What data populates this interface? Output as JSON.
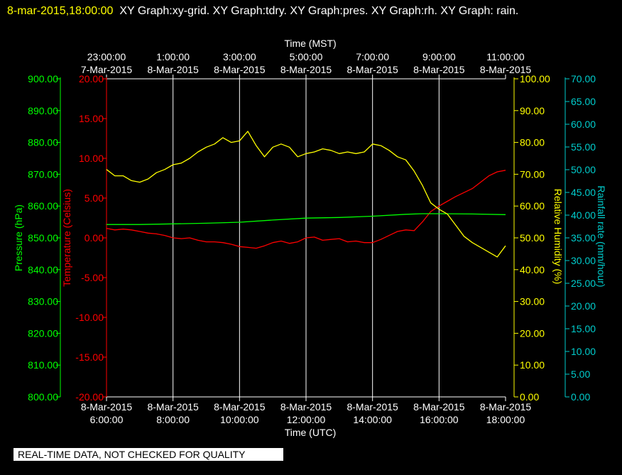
{
  "header": {
    "timestamp": "8-mar-2015,18:00:00",
    "graphs": "XY Graph:xy-grid.  XY Graph:tdry.  XY Graph:pres.  XY Graph:rh.  XY Graph: rain."
  },
  "notice": "REAL-TIME DATA, NOT CHECKED FOR QUALITY",
  "colors": {
    "background": "#000000",
    "grid": "#ffffff",
    "temperature": "#ff0000",
    "pressure": "#00ff00",
    "humidity": "#ffff00",
    "rain": "#00cccc"
  },
  "chart_data": {
    "type": "line",
    "grid": true,
    "x_top": {
      "label": "Time (MST)",
      "ticks": [
        {
          "time": "23:00:00",
          "date": "7-Mar-2015"
        },
        {
          "time": "1:00:00",
          "date": "8-Mar-2015"
        },
        {
          "time": "3:00:00",
          "date": "8-Mar-2015"
        },
        {
          "time": "5:00:00",
          "date": "8-Mar-2015"
        },
        {
          "time": "7:00:00",
          "date": "8-Mar-2015"
        },
        {
          "time": "9:00:00",
          "date": "8-Mar-2015"
        },
        {
          "time": "11:00:00",
          "date": "8-Mar-2015"
        }
      ]
    },
    "x_bottom": {
      "label": "Time (UTC)",
      "range": [
        "2015-03-08 06:00",
        "2015-03-08 18:00"
      ],
      "ticks": [
        {
          "date": "8-Mar-2015",
          "time": "6:00:00"
        },
        {
          "date": "8-Mar-2015",
          "time": "8:00:00"
        },
        {
          "date": "8-Mar-2015",
          "time": "10:00:00"
        },
        {
          "date": "8-Mar-2015",
          "time": "12:00:00"
        },
        {
          "date": "8-Mar-2015",
          "time": "14:00:00"
        },
        {
          "date": "8-Mar-2015",
          "time": "16:00:00"
        },
        {
          "date": "8-Mar-2015",
          "time": "18:00:00"
        }
      ]
    },
    "axes": {
      "pressure": {
        "label": "Pressure (hPa)",
        "ylim": [
          800,
          900
        ],
        "ticks": [
          "900.00",
          "890.00",
          "880.00",
          "870.00",
          "860.00",
          "850.00",
          "840.00",
          "830.00",
          "820.00",
          "810.00",
          "800.00"
        ]
      },
      "temperature": {
        "label": "Temperature (Celsius)",
        "ylim": [
          -20,
          20
        ],
        "ticks": [
          "20.00",
          "15.00",
          "10.00",
          "5.00",
          "0.00",
          "-5.00",
          "-10.00",
          "-15.00",
          "-20.00"
        ]
      },
      "humidity": {
        "label": "Relative Humidity (%)",
        "ylim": [
          0,
          100
        ],
        "ticks": [
          "100.00",
          "90.00",
          "80.00",
          "70.00",
          "60.00",
          "50.00",
          "40.00",
          "30.00",
          "20.00",
          "10.00",
          "0.00"
        ]
      },
      "rain": {
        "label": "Rainfall rate (mm/hour)",
        "ylim": [
          0,
          70
        ],
        "ticks": [
          "70.00",
          "65.00",
          "60.00",
          "55.00",
          "50.00",
          "45.00",
          "40.00",
          "35.00",
          "30.00",
          "25.00",
          "20.00",
          "15.00",
          "10.00",
          "5.00",
          "0.00"
        ]
      }
    },
    "series": [
      {
        "axis": "temperature",
        "x": [
          "2015-03-08 06:00",
          "2015-03-08 06:15",
          "2015-03-08 06:30",
          "2015-03-08 06:45",
          "2015-03-08 07:00",
          "2015-03-08 07:15",
          "2015-03-08 07:30",
          "2015-03-08 07:45",
          "2015-03-08 08:00",
          "2015-03-08 08:15",
          "2015-03-08 08:30",
          "2015-03-08 08:45",
          "2015-03-08 09:00",
          "2015-03-08 09:15",
          "2015-03-08 09:30",
          "2015-03-08 09:45",
          "2015-03-08 10:00",
          "2015-03-08 10:15",
          "2015-03-08 10:30",
          "2015-03-08 10:45",
          "2015-03-08 11:00",
          "2015-03-08 11:15",
          "2015-03-08 11:30",
          "2015-03-08 11:45",
          "2015-03-08 12:00",
          "2015-03-08 12:15",
          "2015-03-08 12:30",
          "2015-03-08 12:45",
          "2015-03-08 13:00",
          "2015-03-08 13:15",
          "2015-03-08 13:30",
          "2015-03-08 13:45",
          "2015-03-08 14:00",
          "2015-03-08 14:15",
          "2015-03-08 14:30",
          "2015-03-08 14:45",
          "2015-03-08 15:00",
          "2015-03-08 15:15",
          "2015-03-08 15:30",
          "2015-03-08 15:45",
          "2015-03-08 16:00",
          "2015-03-08 16:15",
          "2015-03-08 16:30",
          "2015-03-08 16:45",
          "2015-03-08 17:00",
          "2015-03-08 17:15",
          "2015-03-08 17:30",
          "2015-03-08 17:45",
          "2015-03-08 18:00"
        ],
        "values": [
          1.2,
          1.0,
          1.1,
          1.0,
          0.8,
          0.6,
          0.5,
          0.3,
          0.0,
          -0.1,
          0.0,
          -0.3,
          -0.5,
          -0.5,
          -0.6,
          -0.8,
          -1.1,
          -1.2,
          -1.3,
          -1.0,
          -0.6,
          -0.4,
          -0.7,
          -0.5,
          0.0,
          0.1,
          -0.3,
          -0.2,
          -0.1,
          -0.5,
          -0.4,
          -0.6,
          -0.6,
          -0.2,
          0.3,
          0.8,
          1.0,
          0.9,
          2.0,
          3.3,
          4.0,
          4.6,
          5.2,
          5.7,
          6.2,
          7.0,
          7.8,
          8.3,
          8.5
        ]
      },
      {
        "axis": "pressure",
        "x": [
          "2015-03-08 06:00",
          "2015-03-08 07:00",
          "2015-03-08 08:00",
          "2015-03-08 09:00",
          "2015-03-08 10:00",
          "2015-03-08 11:00",
          "2015-03-08 12:00",
          "2015-03-08 13:00",
          "2015-03-08 14:00",
          "2015-03-08 15:00",
          "2015-03-08 15:30",
          "2015-03-08 16:00",
          "2015-03-08 17:00",
          "2015-03-08 18:00"
        ],
        "values": [
          854.2,
          854.2,
          854.4,
          854.6,
          854.9,
          855.6,
          856.2,
          856.4,
          856.8,
          857.4,
          857.6,
          857.6,
          857.5,
          857.3
        ]
      },
      {
        "axis": "humidity",
        "x": [
          "2015-03-08 06:00",
          "2015-03-08 06:15",
          "2015-03-08 06:30",
          "2015-03-08 06:45",
          "2015-03-08 07:00",
          "2015-03-08 07:15",
          "2015-03-08 07:30",
          "2015-03-08 07:45",
          "2015-03-08 08:00",
          "2015-03-08 08:15",
          "2015-03-08 08:30",
          "2015-03-08 08:45",
          "2015-03-08 09:00",
          "2015-03-08 09:15",
          "2015-03-08 09:30",
          "2015-03-08 09:45",
          "2015-03-08 10:00",
          "2015-03-08 10:15",
          "2015-03-08 10:30",
          "2015-03-08 10:45",
          "2015-03-08 11:00",
          "2015-03-08 11:15",
          "2015-03-08 11:30",
          "2015-03-08 11:45",
          "2015-03-08 12:00",
          "2015-03-08 12:15",
          "2015-03-08 12:30",
          "2015-03-08 12:45",
          "2015-03-08 13:00",
          "2015-03-08 13:15",
          "2015-03-08 13:30",
          "2015-03-08 13:45",
          "2015-03-08 14:00",
          "2015-03-08 14:15",
          "2015-03-08 14:30",
          "2015-03-08 14:45",
          "2015-03-08 15:00",
          "2015-03-08 15:15",
          "2015-03-08 15:30",
          "2015-03-08 15:45",
          "2015-03-08 16:00",
          "2015-03-08 16:15",
          "2015-03-08 16:30",
          "2015-03-08 16:45",
          "2015-03-08 17:00",
          "2015-03-08 17:15",
          "2015-03-08 17:30",
          "2015-03-08 17:45",
          "2015-03-08 18:00"
        ],
        "values": [
          71.5,
          69.5,
          69.5,
          68.0,
          67.5,
          68.5,
          70.5,
          71.5,
          73.0,
          73.5,
          75.0,
          77.0,
          78.5,
          79.5,
          81.5,
          80.0,
          80.5,
          83.5,
          79.0,
          75.5,
          78.5,
          79.5,
          78.5,
          75.5,
          76.5,
          77.0,
          78.0,
          77.5,
          76.5,
          77.0,
          76.5,
          77.0,
          79.5,
          79.0,
          77.5,
          75.5,
          74.5,
          71.0,
          66.5,
          61.0,
          59.0,
          57.5,
          54.0,
          50.5,
          48.5,
          47.0,
          45.5,
          44.0,
          47.5
        ]
      },
      {
        "axis": "rain",
        "x": [],
        "values": []
      }
    ]
  }
}
